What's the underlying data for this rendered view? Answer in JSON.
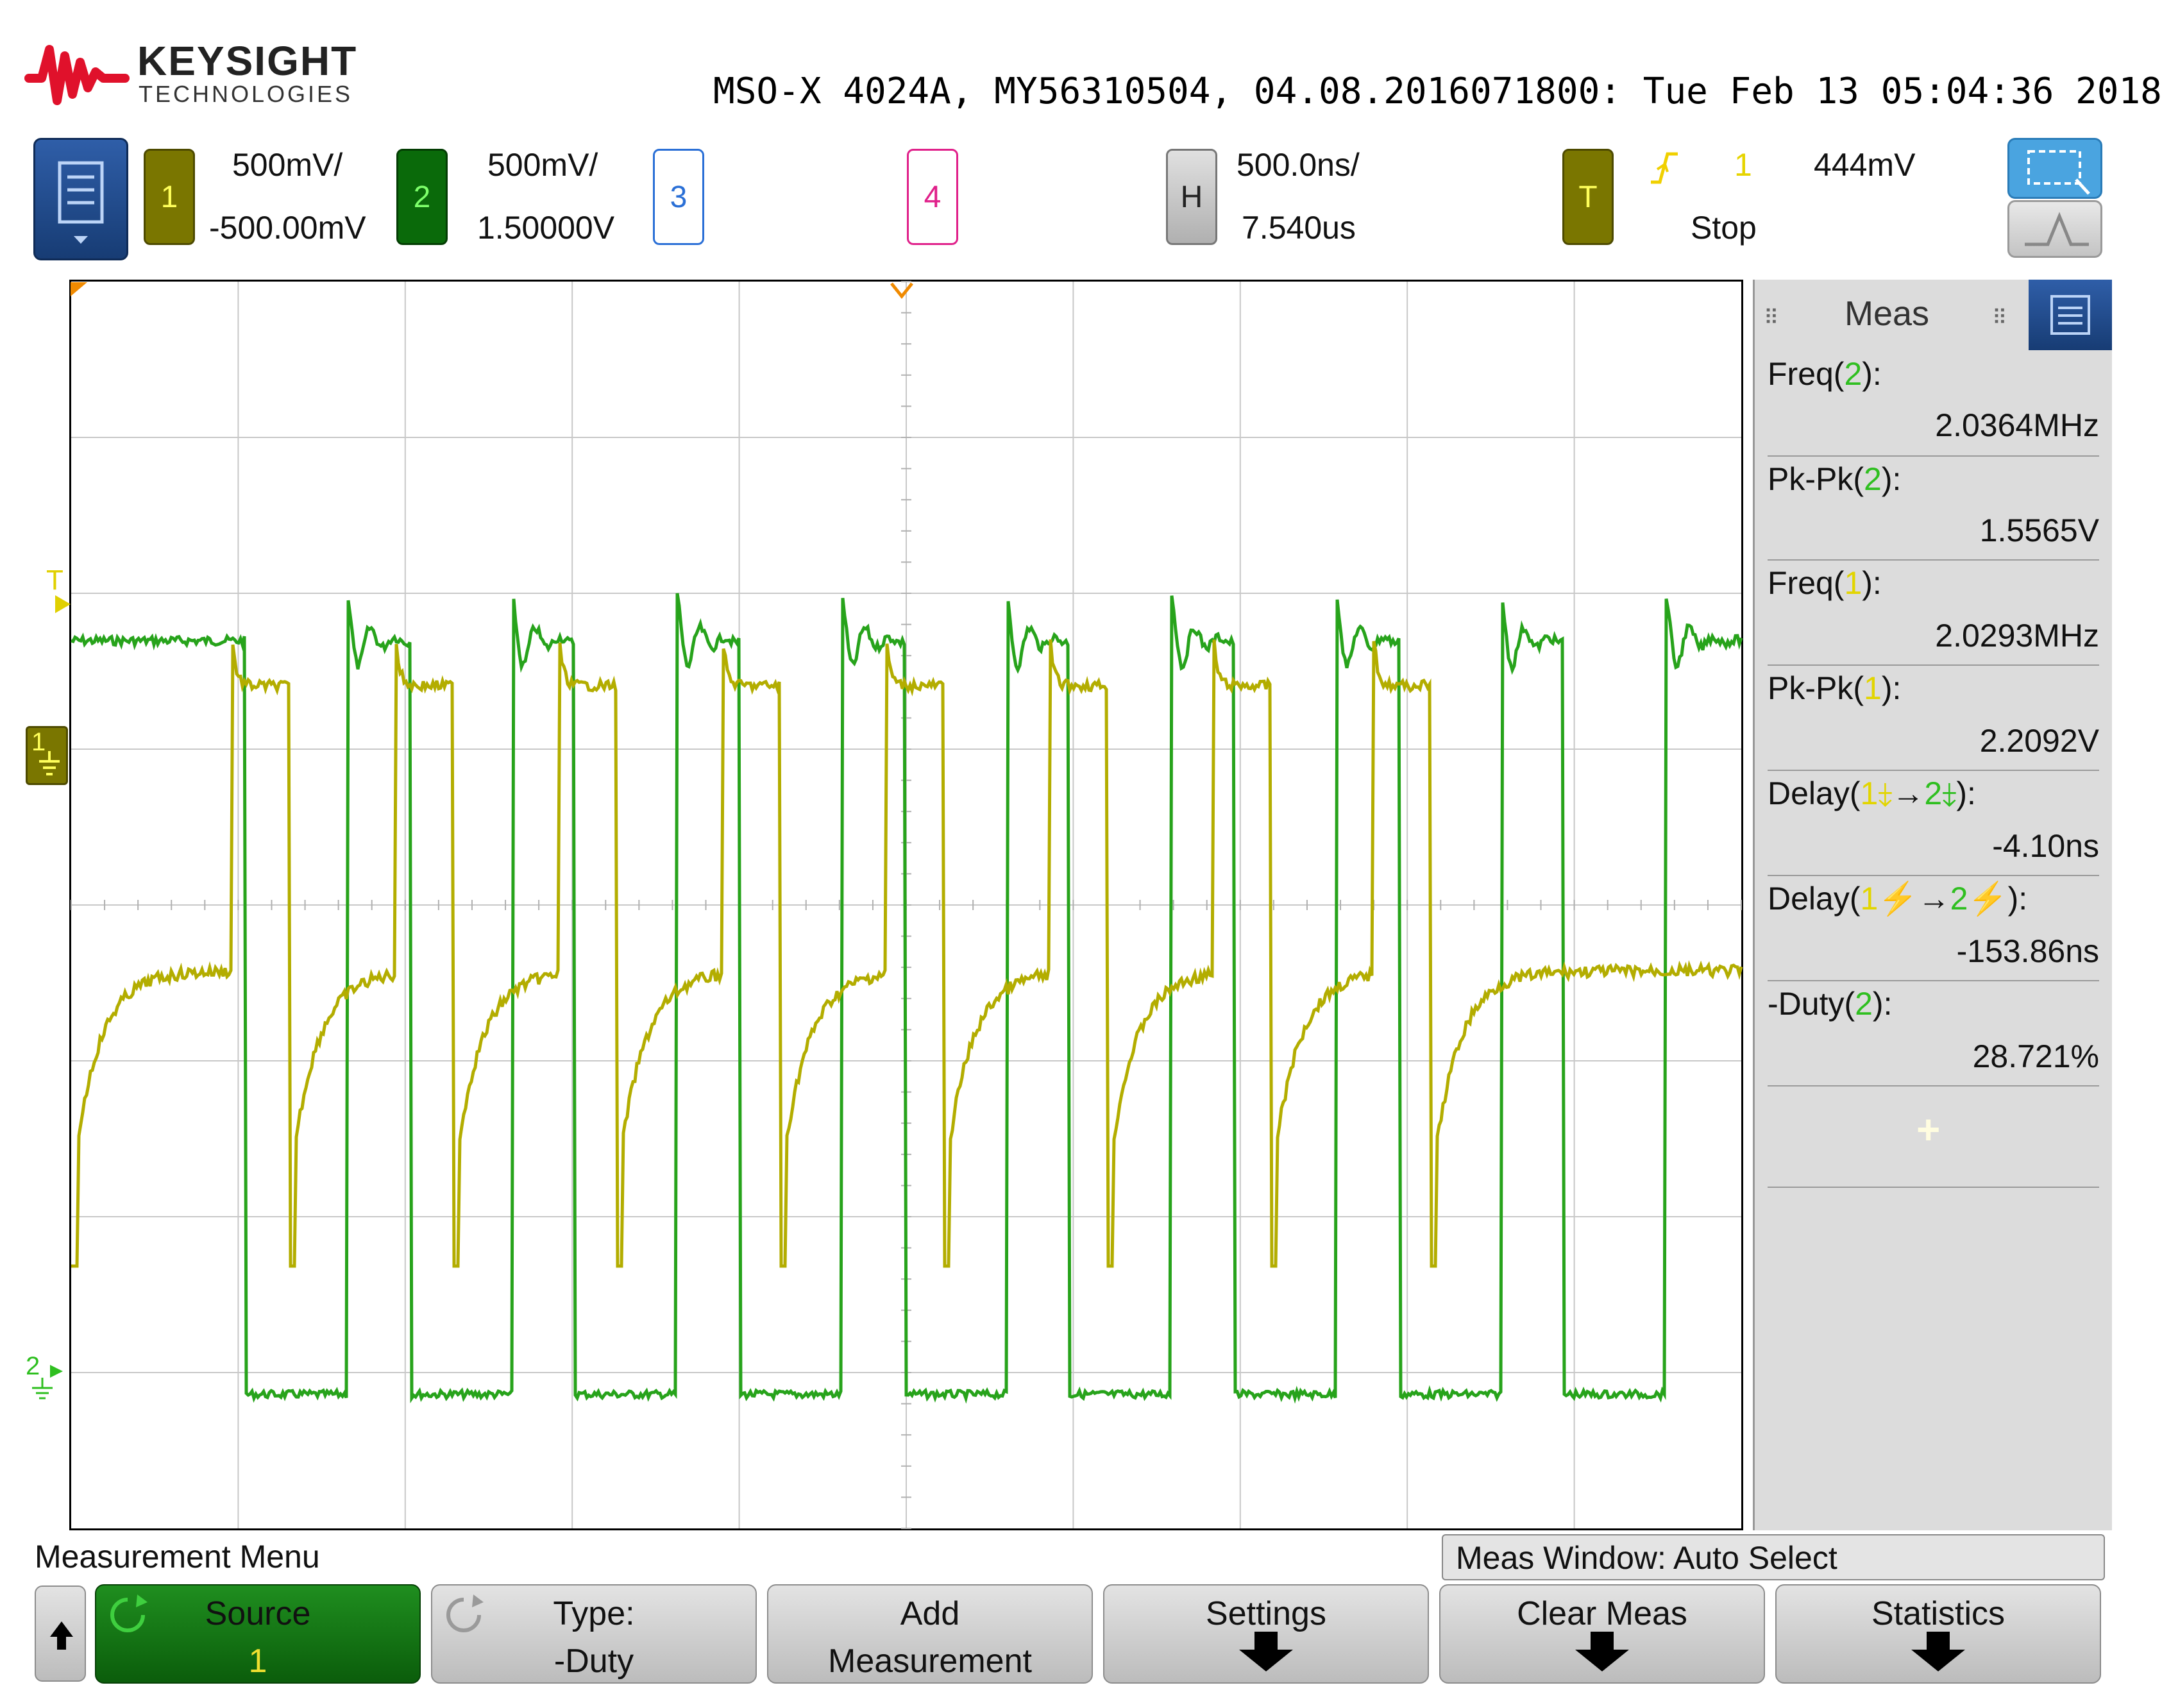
{
  "header": {
    "brand_name": "KEYSIGHT",
    "brand_sub": "TECHNOLOGIES",
    "scope_info": "MSO-X 4024A, MY56310504, 04.08.2016071800: Tue Feb 13 05:04:36 2018"
  },
  "channels": [
    {
      "num": "1",
      "scale": "500mV/",
      "offset": "-500.00mV",
      "color": "#8a8a00"
    },
    {
      "num": "2",
      "scale": "500mV/",
      "offset": "1.50000V",
      "color": "#0a6a0a"
    },
    {
      "num": "3",
      "color": "#2a6fd6"
    },
    {
      "num": "4",
      "color": "#e0208a"
    }
  ],
  "horizontal": {
    "label": "H",
    "scale": "500.0ns/",
    "delay": "7.540us"
  },
  "trigger": {
    "label": "T",
    "edge_icon": "rising-edge-icon",
    "source": "1",
    "level": "444mV",
    "status": "Stop"
  },
  "meas_panel": {
    "title": "Meas",
    "items": [
      {
        "pre": "Freq(",
        "src": "2",
        "post": "):",
        "src_color": "green",
        "value": "2.0364MHz"
      },
      {
        "pre": "Pk-Pk(",
        "src": "2",
        "post": "):",
        "src_color": "green",
        "value": "1.5565V"
      },
      {
        "pre": "Freq(",
        "src": "1",
        "post": "):",
        "src_color": "yellow",
        "value": "2.0293MHz"
      },
      {
        "pre": "Pk-Pk(",
        "src": "1",
        "post": "):",
        "src_color": "yellow",
        "value": "2.2092V"
      },
      {
        "pre": "Delay(",
        "src": "1",
        "arrow": "→",
        "src2": "2",
        "post": "):",
        "edge": "falling",
        "value": "-4.10ns"
      },
      {
        "pre": "Delay(",
        "src": "1",
        "arrow": "→",
        "src2": "2",
        "post": "):",
        "edge": "rising",
        "value": "-153.86ns"
      },
      {
        "pre": "-Duty(",
        "src": "2",
        "post": "):",
        "src_color": "green",
        "value": "28.721%"
      }
    ],
    "add_symbol": "+"
  },
  "ground_markers": {
    "ch1": "1",
    "ch2": "2",
    "trig_level": "T"
  },
  "footer": {
    "menu_title": "Measurement Menu",
    "meas_window": "Meas Window: Auto Select",
    "softkeys": [
      {
        "l1": "Source",
        "l2": "1"
      },
      {
        "l1": "Type:",
        "l2": "-Duty"
      },
      {
        "l1": "Add",
        "l2": "Measurement"
      },
      {
        "l1": "Settings",
        "l2": ""
      },
      {
        "l1": "Clear Meas",
        "l2": ""
      },
      {
        "l1": "Statistics",
        "l2": ""
      }
    ]
  },
  "waveforms": {
    "ch1_color": "#b3ad00",
    "ch2_color": "#27a31b"
  }
}
